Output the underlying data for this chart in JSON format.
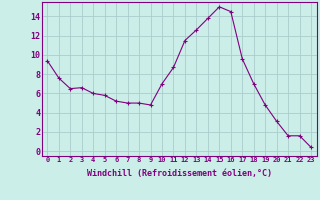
{
  "x": [
    0,
    1,
    2,
    3,
    4,
    5,
    6,
    7,
    8,
    9,
    10,
    11,
    12,
    13,
    14,
    15,
    16,
    17,
    18,
    19,
    20,
    21,
    22,
    23
  ],
  "y": [
    9.4,
    7.6,
    6.5,
    6.6,
    6.0,
    5.8,
    5.2,
    5.0,
    5.0,
    4.8,
    7.0,
    8.7,
    11.5,
    12.6,
    13.8,
    15.0,
    14.5,
    9.6,
    7.0,
    4.8,
    3.1,
    1.6,
    1.6,
    0.4
  ],
  "line_color": "#800080",
  "marker": "+",
  "marker_size": 3,
  "marker_linewidth": 0.8,
  "bg_color": "#cceee8",
  "grid_color": "#aacccc",
  "xlabel": "Windchill (Refroidissement éolien,°C)",
  "ylim": [
    -0.5,
    15.5
  ],
  "xlim": [
    -0.5,
    23.5
  ],
  "yticks": [
    0,
    2,
    4,
    6,
    8,
    10,
    12,
    14
  ],
  "xticks": [
    0,
    1,
    2,
    3,
    4,
    5,
    6,
    7,
    8,
    9,
    10,
    11,
    12,
    13,
    14,
    15,
    16,
    17,
    18,
    19,
    20,
    21,
    22,
    23
  ],
  "tick_color": "#800080",
  "axis_label_color": "#800080",
  "spine_color": "#800080",
  "tick_fontsize": 5,
  "xlabel_fontsize": 6,
  "linewidth": 0.8
}
